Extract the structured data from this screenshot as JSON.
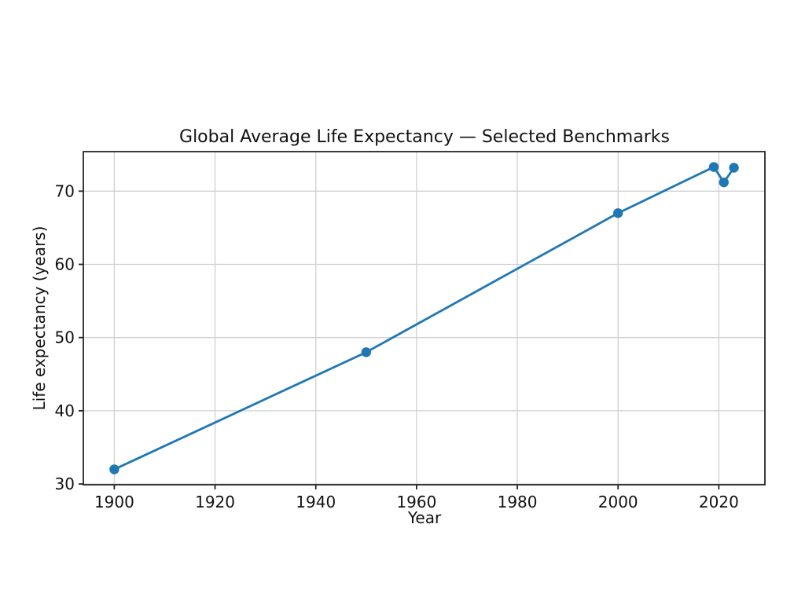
{
  "chart_data": {
    "type": "line",
    "title": "Global Average Life Expectancy — Selected Benchmarks",
    "xlabel": "Year",
    "ylabel": "Life expectancy (years)",
    "x": [
      1900,
      1950,
      2000,
      2019,
      2021,
      2023
    ],
    "y": [
      32,
      48,
      67,
      73.3,
      71.2,
      73.2
    ],
    "x_ticks": [
      1900,
      1920,
      1940,
      1960,
      1980,
      2000,
      2020
    ],
    "y_ticks": [
      30,
      40,
      50,
      60,
      70
    ],
    "xlim": [
      1893.85,
      2029.15
    ],
    "ylim": [
      29.9,
      75.4
    ],
    "grid": true,
    "legend": "none",
    "series_name": "Global average life expectancy",
    "line_color": "#1f77b4",
    "grid_color": "#d0d0d0",
    "spine_color": "#262626",
    "background_color": "#ffffff",
    "marker": "circle"
  }
}
